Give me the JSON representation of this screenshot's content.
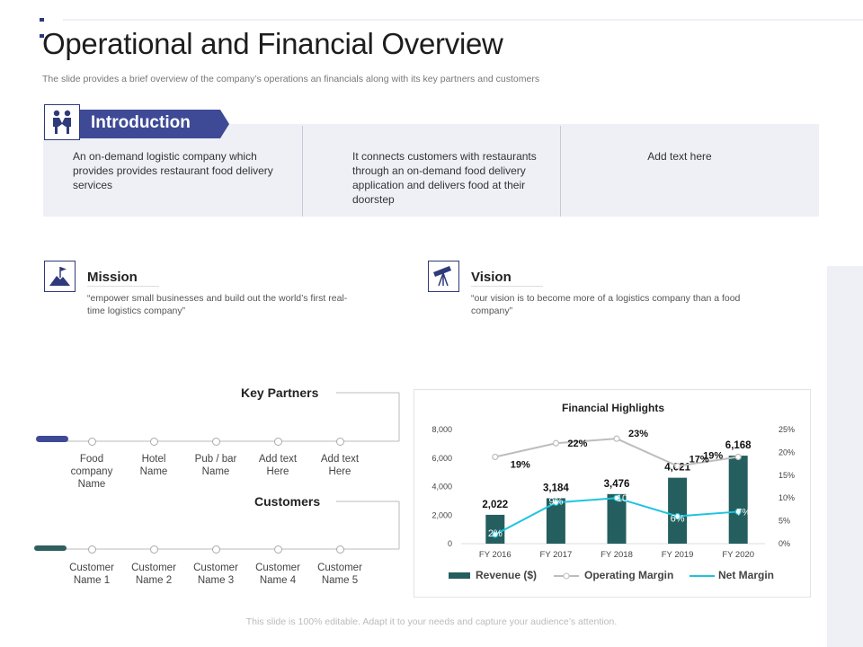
{
  "header": {
    "title": "Operational and Financial Overview",
    "subtitle": "The slide provides a brief overview of the company’s operations an financials along with its key partners and customers"
  },
  "introduction": {
    "label": "Introduction",
    "icon": "handshake-people-icon",
    "columns": [
      "An on-demand logistic company which provides provides restaurant food delivery services",
      "It connects customers with restaurants through an on-demand food delivery application and delivers food at their doorstep",
      "Add text here"
    ]
  },
  "mission": {
    "title": "Mission",
    "icon": "mountain-flag-icon",
    "text": "“empower small businesses and build out the world’s first real-time logistics company”"
  },
  "vision": {
    "title": "Vision",
    "icon": "telescope-icon",
    "text": "“our vision is to become more of a logistics company than a food company”"
  },
  "key_partners": {
    "title": "Key Partners",
    "items": [
      [
        "Food company",
        "Name"
      ],
      [
        "Hotel",
        "Name"
      ],
      [
        "Pub / bar",
        "Name"
      ],
      [
        "Add text",
        "Here"
      ],
      [
        "Add text",
        "Here"
      ]
    ]
  },
  "customers": {
    "title": "Customers",
    "items": [
      [
        "Customer",
        "Name 1"
      ],
      [
        "Customer",
        "Name 2"
      ],
      [
        "Customer",
        "Name 3"
      ],
      [
        "Customer",
        "Name 4"
      ],
      [
        "Customer",
        "Name 5"
      ]
    ]
  },
  "footer": "This slide is 100% editable. Adapt it to your needs and capture your audience’s attention.",
  "colors": {
    "accent": "#3e4a96",
    "accent_dark": "#2f3a7a",
    "panel": "#eef0f6",
    "bar": "#255e5e",
    "operating_margin": "#bdbdbd",
    "net_margin": "#1ec3e0",
    "partners_pill": "#3e4a96",
    "customers_pill": "#2f5f5e"
  },
  "chart_data": {
    "type": "bar",
    "title": "Financial Highlights",
    "categories": [
      "FY 2016",
      "FY 2017",
      "FY 2018",
      "FY 2019",
      "FY 2020"
    ],
    "series": [
      {
        "name": "Revenue ($)",
        "type": "bar",
        "axis": "left",
        "values": [
          2022,
          3184,
          3476,
          4621,
          6168
        ],
        "labels": [
          "2,022",
          "3,184",
          "3,476",
          "4,621",
          "6,168"
        ]
      },
      {
        "name": "Operating Margin",
        "type": "line",
        "axis": "right",
        "values": [
          19,
          22,
          23,
          17,
          19
        ],
        "labels": [
          "19%",
          "22%",
          "23%",
          "17%",
          "19%"
        ]
      },
      {
        "name": "Net Margin",
        "type": "line",
        "axis": "right",
        "values": [
          2,
          9,
          10,
          6,
          7
        ],
        "labels": [
          "2%",
          "9%",
          "10",
          "6%",
          "7%"
        ]
      }
    ],
    "y_left": {
      "min": 0,
      "max": 8000,
      "ticks": [
        "0",
        "2,000",
        "4,000",
        "6,000",
        "8,000"
      ]
    },
    "y_right": {
      "min": 0,
      "max": 25,
      "ticks": [
        "0%",
        "5%",
        "10%",
        "15%",
        "20%",
        "25%"
      ]
    },
    "legend": "bottom",
    "grid": false
  }
}
